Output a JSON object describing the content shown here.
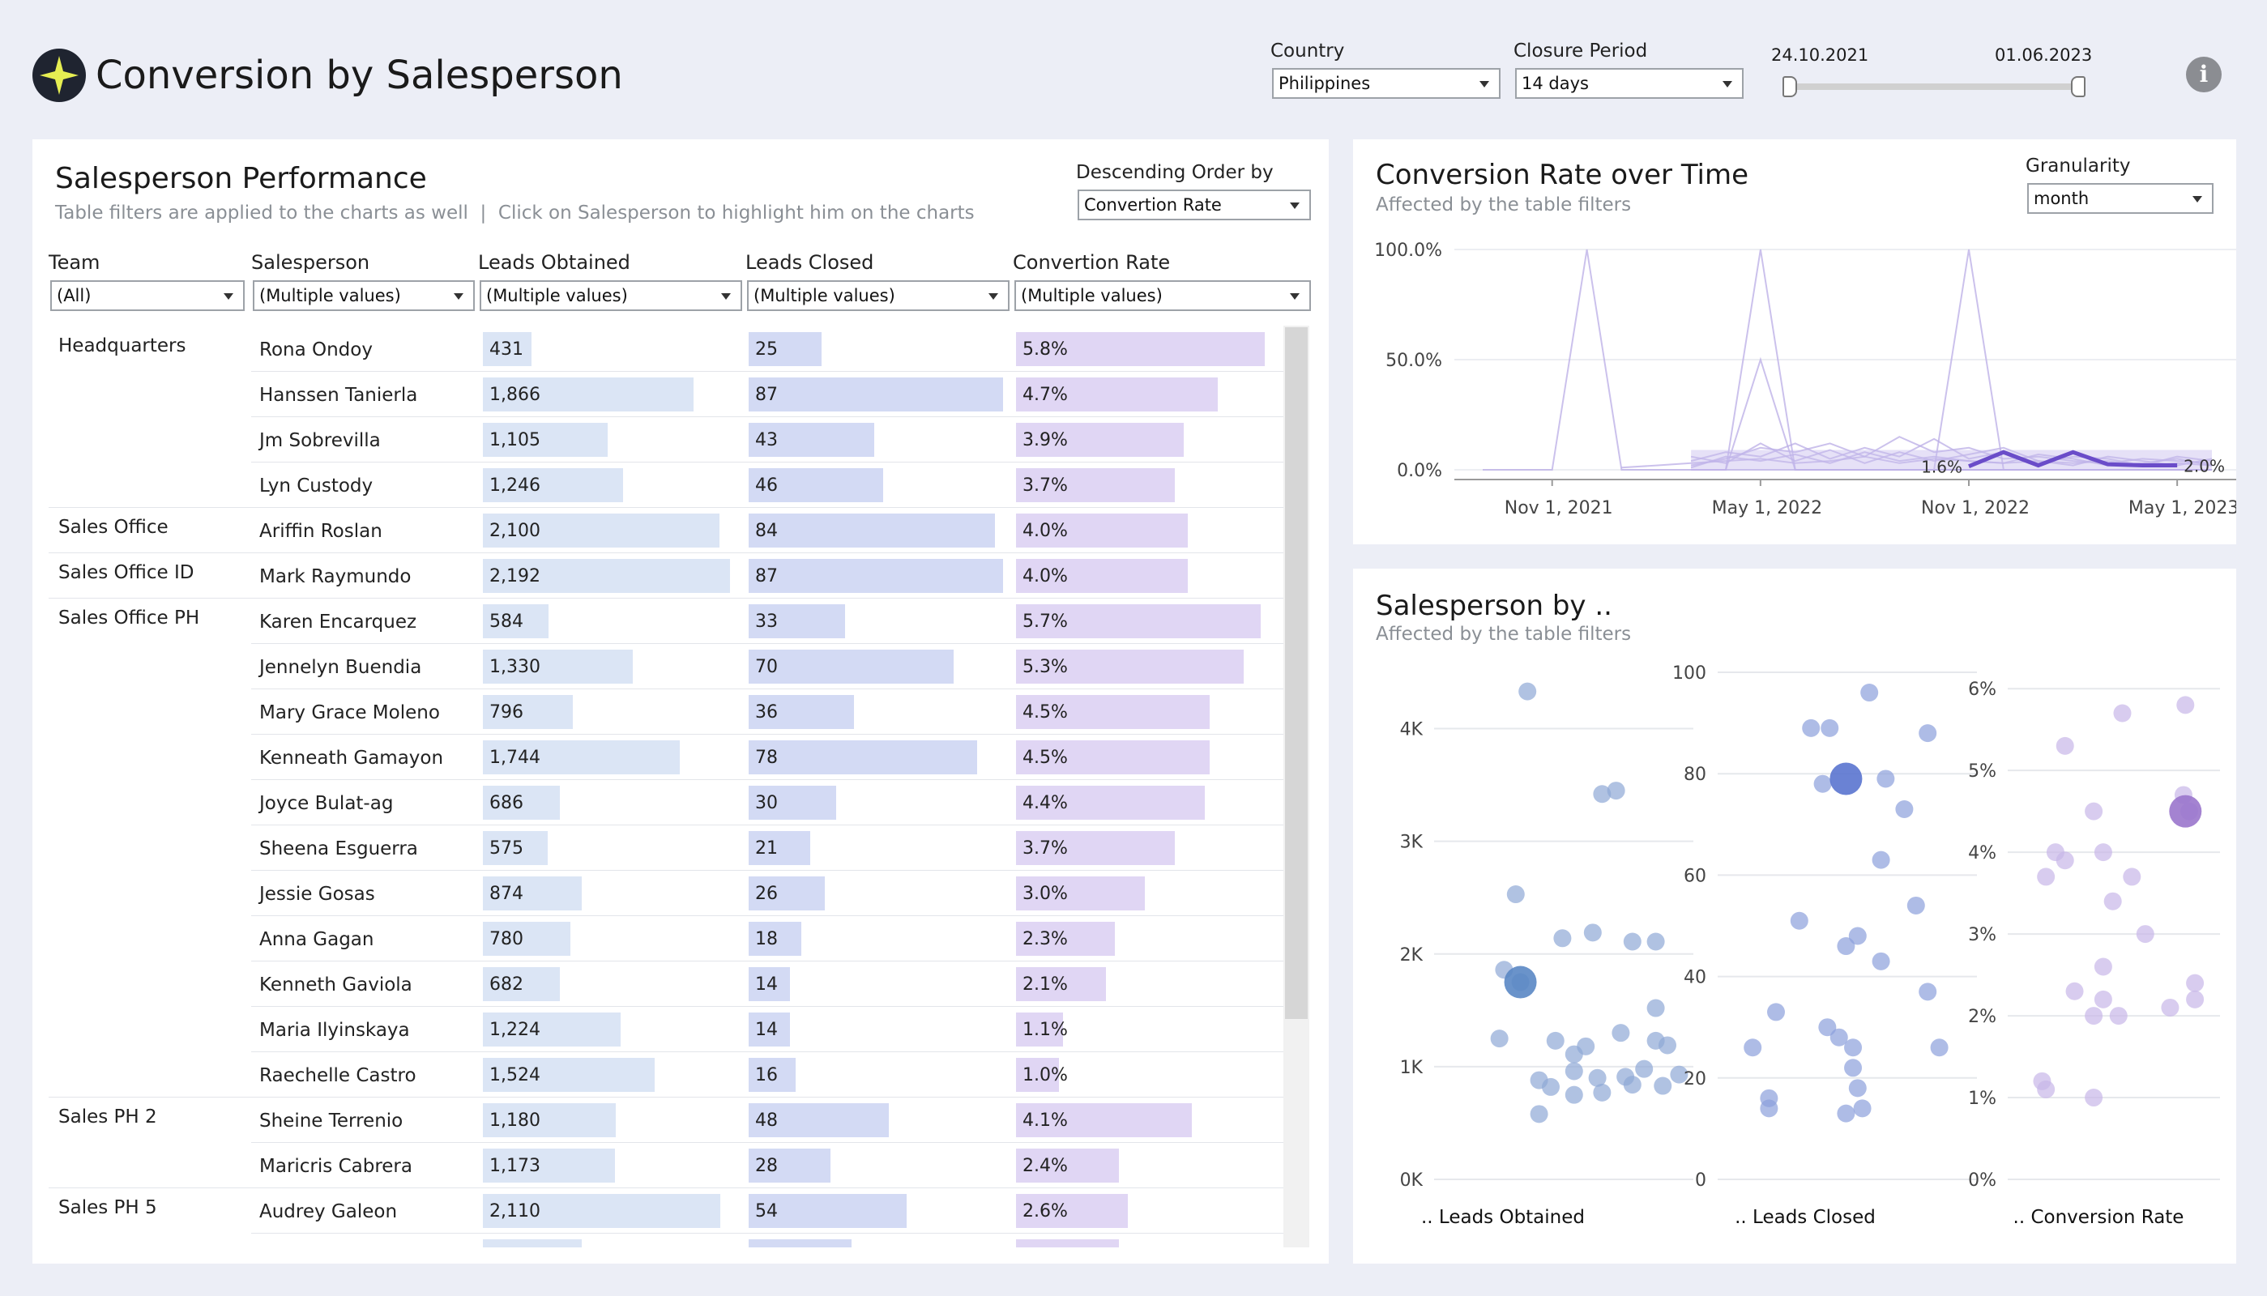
{
  "header": {
    "title": "Conversion by Salesperson",
    "logo_icon": "star-badge-icon",
    "info_icon": "info-icon"
  },
  "filters": {
    "country": {
      "label": "Country",
      "value": "Philippines"
    },
    "closure_period": {
      "label": "Closure Period",
      "value": "14 days"
    },
    "date_range": {
      "start": "24.10.2021",
      "end": "01.06.2023"
    }
  },
  "performance": {
    "title": "Salesperson Performance",
    "subtitle": "Table filters are applied to the charts as well  |  Click on Salesperson to highlight him on the charts",
    "order": {
      "label": "Descending Order by",
      "value": "Convertion Rate"
    },
    "columns": [
      {
        "label": "Team",
        "filter": "(All)"
      },
      {
        "label": "Salesperson",
        "filter": "(Multiple values)"
      },
      {
        "label": "Leads Obtained",
        "filter": "(Multiple values)"
      },
      {
        "label": "Leads Closed",
        "filter": "(Multiple values)"
      },
      {
        "label": "Convertion Rate",
        "filter": "(Multiple values)"
      }
    ],
    "rows": [
      {
        "team": "Headquarters",
        "name": "Rona Ondoy",
        "obtained": "431",
        "closed": "25",
        "rate": "5.8%"
      },
      {
        "team": "",
        "name": "Hanssen Tanierla",
        "obtained": "1,866",
        "closed": "87",
        "rate": "4.7%"
      },
      {
        "team": "",
        "name": "Jm Sobrevilla",
        "obtained": "1,105",
        "closed": "43",
        "rate": "3.9%"
      },
      {
        "team": "",
        "name": "Lyn Custody",
        "obtained": "1,246",
        "closed": "46",
        "rate": "3.7%"
      },
      {
        "team": "Sales Office",
        "name": "Ariffin Roslan",
        "obtained": "2,100",
        "closed": "84",
        "rate": "4.0%"
      },
      {
        "team": "Sales Office ID",
        "name": "Mark Raymundo",
        "obtained": "2,192",
        "closed": "87",
        "rate": "4.0%"
      },
      {
        "team": "Sales Office PH",
        "name": "Karen Encarquez",
        "obtained": "584",
        "closed": "33",
        "rate": "5.7%"
      },
      {
        "team": "",
        "name": "Jennelyn Buendia",
        "obtained": "1,330",
        "closed": "70",
        "rate": "5.3%"
      },
      {
        "team": "",
        "name": "Mary Grace Moleno",
        "obtained": "796",
        "closed": "36",
        "rate": "4.5%"
      },
      {
        "team": "",
        "name": "Kenneath Gamayon",
        "obtained": "1,744",
        "closed": "78",
        "rate": "4.5%"
      },
      {
        "team": "",
        "name": "Joyce Bulat-ag",
        "obtained": "686",
        "closed": "30",
        "rate": "4.4%"
      },
      {
        "team": "",
        "name": "Sheena Esguerra",
        "obtained": "575",
        "closed": "21",
        "rate": "3.7%"
      },
      {
        "team": "",
        "name": "Jessie Gosas",
        "obtained": "874",
        "closed": "26",
        "rate": "3.0%"
      },
      {
        "team": "",
        "name": "Anna Gagan",
        "obtained": "780",
        "closed": "18",
        "rate": "2.3%"
      },
      {
        "team": "",
        "name": "Kenneth Gaviola",
        "obtained": "682",
        "closed": "14",
        "rate": "2.1%"
      },
      {
        "team": "",
        "name": "Maria Ilyinskaya",
        "obtained": "1,224",
        "closed": "14",
        "rate": "1.1%"
      },
      {
        "team": "",
        "name": "Raechelle Castro",
        "obtained": "1,524",
        "closed": "16",
        "rate": "1.0%"
      },
      {
        "team": "Sales PH 2",
        "name": "Sheine Terrenio",
        "obtained": "1,180",
        "closed": "48",
        "rate": "4.1%"
      },
      {
        "team": "",
        "name": "Maricris Cabrera",
        "obtained": "1,173",
        "closed": "28",
        "rate": "2.4%"
      },
      {
        "team": "Sales PH 5",
        "name": "Audrey Galeon",
        "obtained": "2,110",
        "closed": "54",
        "rate": "2.6%"
      }
    ]
  },
  "time_panel": {
    "title": "Conversion Rate over Time",
    "subtitle": "Affected by the table filters",
    "granularity": {
      "label": "Granularity",
      "value": "month"
    }
  },
  "scatter_panel": {
    "title": "Salesperson by ..",
    "subtitle": "Affected by the table filters"
  },
  "chart_data": [
    {
      "type": "table",
      "title": "Salesperson Performance",
      "columns": [
        "Team",
        "Salesperson",
        "Leads Obtained",
        "Leads Closed",
        "Convertion Rate"
      ],
      "leads_obtained": [
        431,
        1866,
        1105,
        1246,
        2100,
        2192,
        584,
        1330,
        796,
        1744,
        686,
        575,
        874,
        780,
        682,
        1224,
        1524,
        1180,
        1173,
        2110
      ],
      "leads_closed": [
        25,
        87,
        43,
        46,
        84,
        87,
        33,
        70,
        36,
        78,
        30,
        21,
        26,
        18,
        14,
        14,
        16,
        48,
        28,
        54
      ],
      "conversion_rate": [
        5.8,
        4.7,
        3.9,
        3.7,
        4.0,
        4.0,
        5.7,
        5.3,
        4.5,
        4.5,
        4.4,
        3.7,
        3.0,
        2.3,
        2.1,
        1.1,
        1.0,
        4.1,
        2.4,
        2.6
      ],
      "scale_max": [
        2200,
        88,
        6.0
      ]
    },
    {
      "type": "line",
      "title": "Conversion Rate over Time",
      "x_ticks": [
        "Nov 1, 2021",
        "May 1, 2022",
        "Nov 1, 2022",
        "May 1, 2023"
      ],
      "y_ticks": [
        "100.0%",
        "50.0%",
        "0.0%"
      ],
      "ylim": [
        0,
        100
      ],
      "x_months": [
        "Sep 2021",
        "Oct 2021",
        "Nov 2021",
        "Dec 2021",
        "Jan 2022",
        "Feb 2022",
        "Mar 2022",
        "Apr 2022",
        "May 2022",
        "Jun 2022",
        "Jul 2022",
        "Aug 2022",
        "Sep 2022",
        "Oct 2022",
        "Nov 2022",
        "Dec 2022",
        "Jan 2023",
        "Feb 2023",
        "Mar 2023",
        "Apr 2023",
        "May 2023",
        "Jun 2023"
      ],
      "series": [
        {
          "values": [
            0,
            0,
            0,
            100,
            0,
            0,
            0,
            0,
            0,
            0,
            0,
            0,
            0,
            0,
            0,
            0,
            0,
            0,
            0,
            0,
            0,
            0
          ]
        },
        {
          "values": [
            null,
            null,
            null,
            null,
            null,
            null,
            0,
            0,
            100,
            0,
            0,
            0,
            0,
            0,
            0,
            0,
            0,
            0,
            0,
            0,
            0,
            0
          ]
        },
        {
          "values": [
            null,
            null,
            null,
            null,
            null,
            null,
            null,
            0,
            50,
            0,
            0,
            0,
            0,
            0,
            0,
            0,
            0,
            0,
            0,
            0,
            0,
            0
          ]
        },
        {
          "values": [
            null,
            null,
            null,
            null,
            null,
            null,
            null,
            null,
            null,
            null,
            null,
            null,
            null,
            0,
            100,
            0,
            0,
            0,
            0,
            0,
            0,
            0
          ]
        },
        {
          "values": [
            null,
            null,
            null,
            null,
            null,
            null,
            2,
            5,
            10,
            8,
            12,
            6,
            15,
            8,
            10,
            5,
            6,
            4,
            3,
            5,
            4,
            3
          ]
        },
        {
          "values": [
            null,
            null,
            null,
            null,
            null,
            null,
            4,
            8,
            6,
            12,
            5,
            10,
            6,
            14,
            5,
            8,
            3,
            6,
            5,
            2,
            6,
            4
          ]
        },
        {
          "values": [
            null,
            null,
            null,
            null,
            null,
            null,
            6,
            3,
            12,
            4,
            9,
            3,
            8,
            4,
            7,
            10,
            4,
            2,
            6,
            4,
            2,
            5
          ]
        },
        {
          "values": [
            null,
            null,
            null,
            null,
            null,
            null,
            1,
            6,
            4,
            7,
            3,
            8,
            4,
            6,
            4,
            3,
            7,
            5,
            2,
            3,
            5,
            2
          ]
        },
        {
          "values": [
            null,
            null,
            null,
            null,
            1,
            2,
            3,
            4,
            5,
            3,
            4,
            6,
            3,
            5,
            4,
            3,
            4,
            3,
            4,
            2,
            3,
            2
          ]
        }
      ],
      "highlight": {
        "x_months": [
          "Nov 2022",
          "Dec 2022",
          "Jan 2023",
          "Feb 2023",
          "Mar 2023",
          "Apr 2023",
          "May 2023"
        ],
        "values": [
          1.6,
          8.0,
          2.0,
          8.0,
          2.5,
          2.0,
          2.0
        ],
        "labels": {
          "start": "1.6%",
          "end": "2.0%"
        }
      }
    },
    {
      "type": "scatter",
      "title": ".. Leads Obtained",
      "xlabel": ".. Leads Obtained",
      "y_ticks": [
        "4K",
        "3K",
        "2K",
        "1K",
        "0K"
      ],
      "ylim": [
        0,
        4500
      ],
      "points": [
        [
          0.4,
          4330
        ],
        [
          0.72,
          3420
        ],
        [
          0.78,
          3450
        ],
        [
          0.35,
          2530
        ],
        [
          0.55,
          2140
        ],
        [
          0.68,
          2190
        ],
        [
          0.85,
          2110
        ],
        [
          0.95,
          2110
        ],
        [
          0.3,
          1860
        ],
        [
          0.37,
          1750
        ],
        [
          0.95,
          1520
        ],
        [
          0.28,
          1250
        ],
        [
          0.52,
          1230
        ],
        [
          0.8,
          1300
        ],
        [
          0.95,
          1230
        ],
        [
          0.65,
          1180
        ],
        [
          0.6,
          1110
        ],
        [
          1.0,
          1190
        ],
        [
          0.9,
          980
        ],
        [
          0.6,
          960
        ],
        [
          0.82,
          910
        ],
        [
          1.05,
          930
        ],
        [
          0.7,
          900
        ],
        [
          0.45,
          880
        ],
        [
          0.85,
          840
        ],
        [
          0.5,
          820
        ],
        [
          0.6,
          750
        ],
        [
          0.72,
          770
        ],
        [
          0.98,
          830
        ],
        [
          0.45,
          580
        ]
      ],
      "highlight": [
        0.37,
        1750
      ]
    },
    {
      "type": "scatter",
      "title": ".. Leads Closed",
      "xlabel": ".. Leads Closed",
      "y_ticks": [
        "100",
        "80",
        "60",
        "40",
        "20",
        "0"
      ],
      "ylim": [
        0,
        100
      ],
      "points": [
        [
          0.65,
          96
        ],
        [
          0.4,
          89
        ],
        [
          0.48,
          89
        ],
        [
          0.9,
          88
        ],
        [
          0.45,
          78
        ],
        [
          0.72,
          79
        ],
        [
          0.8,
          73
        ],
        [
          0.7,
          63
        ],
        [
          0.85,
          54
        ],
        [
          0.35,
          51
        ],
        [
          0.55,
          46
        ],
        [
          0.6,
          48
        ],
        [
          0.7,
          43
        ],
        [
          0.9,
          37
        ],
        [
          0.25,
          33
        ],
        [
          0.47,
          30
        ],
        [
          0.52,
          28
        ],
        [
          0.15,
          26
        ],
        [
          0.58,
          26
        ],
        [
          0.95,
          26
        ],
        [
          0.58,
          22
        ],
        [
          0.6,
          18
        ],
        [
          0.22,
          16
        ],
        [
          0.62,
          14
        ],
        [
          0.22,
          14
        ],
        [
          0.55,
          13
        ]
      ],
      "highlight": [
        0.55,
        79
      ]
    },
    {
      "type": "scatter",
      "title": ".. Conversion Rate",
      "xlabel": ".. Conversion Rate",
      "y_ticks": [
        "6%",
        "5%",
        "4%",
        "3%",
        "2%",
        "1%",
        "0%"
      ],
      "ylim": [
        0,
        6.2
      ],
      "points": [
        [
          0.93,
          5.8
        ],
        [
          0.6,
          5.7
        ],
        [
          0.3,
          5.3
        ],
        [
          0.92,
          4.7
        ],
        [
          0.95,
          4.5
        ],
        [
          0.45,
          4.5
        ],
        [
          0.5,
          4.0
        ],
        [
          0.25,
          4.0
        ],
        [
          0.3,
          3.9
        ],
        [
          0.65,
          3.7
        ],
        [
          0.2,
          3.7
        ],
        [
          0.55,
          3.4
        ],
        [
          0.72,
          3.0
        ],
        [
          0.5,
          2.6
        ],
        [
          0.98,
          2.4
        ],
        [
          0.35,
          2.3
        ],
        [
          0.5,
          2.2
        ],
        [
          0.85,
          2.1
        ],
        [
          0.98,
          2.2
        ],
        [
          0.45,
          2.0
        ],
        [
          0.58,
          2.0
        ],
        [
          0.18,
          1.2
        ],
        [
          0.2,
          1.1
        ],
        [
          0.45,
          1.0
        ]
      ],
      "highlight": [
        0.93,
        4.5
      ]
    }
  ]
}
